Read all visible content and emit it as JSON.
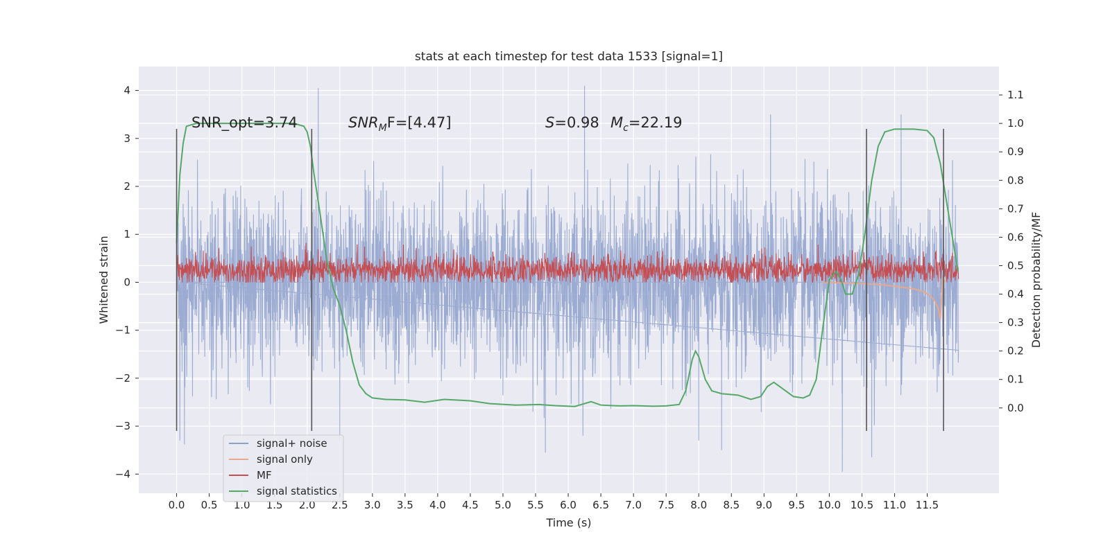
{
  "chart_data": {
    "type": "line",
    "title": "stats at each timestep for test data 1533 [signal=1]",
    "xlabel": "Time (s)",
    "ylabel": "Whitened strain",
    "ylabel_right": "Detection probability/MF",
    "xlim": [
      -0.58,
      12.6
    ],
    "ylim": [
      -4.4,
      4.5
    ],
    "ylim_right": [
      -0.3,
      1.2
    ],
    "x_ticks": [
      0.0,
      0.5,
      1.0,
      1.5,
      2.0,
      2.5,
      3.0,
      3.5,
      4.0,
      4.5,
      5.0,
      5.5,
      6.0,
      6.5,
      7.0,
      7.5,
      8.0,
      8.5,
      9.0,
      9.5,
      10.0,
      10.5,
      11.0,
      11.5
    ],
    "x_tick_labels": [
      "0.0",
      "0.5",
      "1.0",
      "1.5",
      "2.0",
      "2.5",
      "3.0",
      "3.5",
      "4.0",
      "4.5",
      "5.0",
      "5.5",
      "6.0",
      "6.5",
      "7.0",
      "7.5",
      "8.0",
      "8.5",
      "9.0",
      "9.5",
      "10.0",
      "10.5",
      "11.0",
      "11.5"
    ],
    "y_ticks": [
      4,
      3,
      2,
      1,
      0,
      -1,
      -2,
      -3,
      -4
    ],
    "y_tick_labels": [
      "4",
      "3",
      "2",
      "1",
      "0",
      "−1",
      "−2",
      "−3",
      "−4"
    ],
    "y_right_ticks": [
      1.1,
      1.0,
      0.9,
      0.8,
      0.7,
      0.6,
      0.5,
      0.4,
      0.3,
      0.2,
      0.1,
      0.0
    ],
    "y_right_tick_labels": [
      "1.1",
      "1.0",
      "0.9",
      "0.8",
      "0.7",
      "0.6",
      "0.5",
      "0.4",
      "0.3",
      "0.2",
      "0.1",
      "0.0"
    ],
    "grid": true,
    "legend_position": "lower-left",
    "annotations": {
      "snr_opt": "SNR_opt=3.74",
      "snr_mf_italic": "SNR",
      "snr_mf_sub": "M",
      "snr_mf_rest": "F=[4.47]",
      "s_italic": "S",
      "s_rest": "=0.98",
      "mc_italic": "M",
      "mc_sub": "c",
      "mc_rest": "=22.19"
    },
    "vertical_lines_x": [
      0.0,
      2.07,
      10.57,
      11.75
    ],
    "vertical_lines_y_range": [
      -3.1,
      3.2
    ],
    "series": [
      {
        "name": "signal+ noise",
        "color": "#8da0cb",
        "approx_std": 0.9,
        "peaks": [
          {
            "x": 0.05,
            "y": -3.3
          },
          {
            "x": 0.12,
            "y": -3.38
          },
          {
            "x": 2.17,
            "y": 4.05
          },
          {
            "x": 2.5,
            "y": -3.3
          },
          {
            "x": 6.25,
            "y": 4.1
          },
          {
            "x": 5.65,
            "y": -3.55
          },
          {
            "x": 8.0,
            "y": -3.3
          },
          {
            "x": 8.35,
            "y": -3.5
          },
          {
            "x": 10.2,
            "y": -3.95
          },
          {
            "x": 10.65,
            "y": -3.65
          },
          {
            "x": 11.1,
            "y": 3.5
          },
          {
            "x": 9.1,
            "y": 3.5
          }
        ]
      },
      {
        "name": "signal only",
        "color": "#e8a88e",
        "points": [
          [
            9.9,
            0.0
          ],
          [
            10.4,
            -0.02
          ],
          [
            10.8,
            -0.05
          ],
          [
            11.1,
            -0.1
          ],
          [
            11.3,
            -0.14
          ],
          [
            11.45,
            -0.2
          ],
          [
            11.55,
            -0.28
          ],
          [
            11.62,
            -0.4
          ],
          [
            11.67,
            -0.55
          ],
          [
            11.7,
            -0.78
          ],
          [
            11.72,
            -0.3
          ],
          [
            11.74,
            0.1
          ],
          [
            11.78,
            0.0
          ]
        ]
      },
      {
        "name": "MF",
        "color": "#c44e52",
        "approx_center": 0.25,
        "approx_spread": 0.15
      },
      {
        "name": "signal statistics",
        "color": "#55a868",
        "points": [
          [
            0.0,
            0.58
          ],
          [
            0.05,
            0.82
          ],
          [
            0.1,
            0.93
          ],
          [
            0.15,
            0.99
          ],
          [
            0.3,
            1.0
          ],
          [
            1.0,
            1.0
          ],
          [
            1.8,
            1.0
          ],
          [
            1.95,
            0.99
          ],
          [
            2.0,
            0.97
          ],
          [
            2.05,
            0.92
          ],
          [
            2.1,
            0.83
          ],
          [
            2.2,
            0.68
          ],
          [
            2.3,
            0.52
          ],
          [
            2.4,
            0.42
          ],
          [
            2.5,
            0.36
          ],
          [
            2.6,
            0.27
          ],
          [
            2.7,
            0.16
          ],
          [
            2.8,
            0.08
          ],
          [
            2.9,
            0.05
          ],
          [
            3.0,
            0.035
          ],
          [
            3.2,
            0.03
          ],
          [
            3.5,
            0.028
          ],
          [
            3.8,
            0.02
          ],
          [
            4.1,
            0.03
          ],
          [
            4.5,
            0.025
          ],
          [
            4.8,
            0.015
          ],
          [
            5.2,
            0.01
          ],
          [
            5.55,
            0.012
          ],
          [
            5.8,
            0.008
          ],
          [
            6.1,
            0.005
          ],
          [
            6.35,
            0.022
          ],
          [
            6.5,
            0.01
          ],
          [
            6.8,
            0.007
          ],
          [
            7.0,
            0.008
          ],
          [
            7.3,
            0.006
          ],
          [
            7.5,
            0.007
          ],
          [
            7.7,
            0.012
          ],
          [
            7.8,
            0.06
          ],
          [
            7.9,
            0.17
          ],
          [
            7.95,
            0.2
          ],
          [
            8.0,
            0.18
          ],
          [
            8.1,
            0.1
          ],
          [
            8.2,
            0.06
          ],
          [
            8.35,
            0.05
          ],
          [
            8.6,
            0.045
          ],
          [
            8.8,
            0.03
          ],
          [
            8.95,
            0.04
          ],
          [
            9.05,
            0.075
          ],
          [
            9.15,
            0.09
          ],
          [
            9.3,
            0.065
          ],
          [
            9.45,
            0.04
          ],
          [
            9.6,
            0.035
          ],
          [
            9.7,
            0.045
          ],
          [
            9.8,
            0.1
          ],
          [
            9.9,
            0.28
          ],
          [
            10.0,
            0.45
          ],
          [
            10.1,
            0.48
          ],
          [
            10.18,
            0.45
          ],
          [
            10.25,
            0.4
          ],
          [
            10.35,
            0.4
          ],
          [
            10.45,
            0.47
          ],
          [
            10.55,
            0.62
          ],
          [
            10.65,
            0.8
          ],
          [
            10.75,
            0.92
          ],
          [
            10.85,
            0.97
          ],
          [
            11.0,
            0.98
          ],
          [
            11.3,
            0.98
          ],
          [
            11.5,
            0.975
          ],
          [
            11.6,
            0.95
          ],
          [
            11.7,
            0.86
          ],
          [
            11.8,
            0.72
          ],
          [
            11.9,
            0.58
          ],
          [
            11.97,
            0.48
          ]
        ]
      }
    ]
  }
}
